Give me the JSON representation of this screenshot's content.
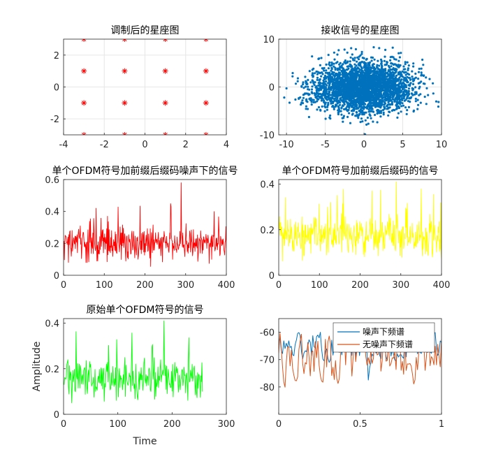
{
  "chart_data": [
    {
      "id": "p1",
      "type": "scatter",
      "title": "调制后的星座图",
      "xlim": [
        -4,
        4
      ],
      "ylim": [
        -3,
        3
      ],
      "xticks": [
        -4,
        -2,
        0,
        2,
        4
      ],
      "yticks": [
        -2,
        0,
        2
      ],
      "grid": true,
      "marker": "asterisk",
      "color": "#ff0000",
      "points": [
        [
          -3,
          -3
        ],
        [
          -1,
          -3
        ],
        [
          1,
          -3
        ],
        [
          3,
          -3
        ],
        [
          -3,
          -1
        ],
        [
          -1,
          -1
        ],
        [
          1,
          -1
        ],
        [
          3,
          -1
        ],
        [
          -3,
          1
        ],
        [
          -1,
          1
        ],
        [
          1,
          1
        ],
        [
          3,
          1
        ],
        [
          -3,
          3
        ],
        [
          -1,
          3
        ],
        [
          1,
          3
        ],
        [
          3,
          3
        ]
      ]
    },
    {
      "id": "p2",
      "type": "scatter",
      "title": "接收信号的星座图",
      "xlim": [
        -11,
        10
      ],
      "ylim": [
        -10,
        10
      ],
      "xticks": [
        -10,
        -5,
        0,
        5,
        10
      ],
      "yticks": [
        -10,
        0,
        10
      ],
      "grid": true,
      "marker": "dot",
      "color": "#0072bd",
      "description": "dense gaussian cloud of received noisy constellation points",
      "cloud": {
        "center": [
          0,
          0
        ],
        "std_x": 3.2,
        "std_y": 2.6,
        "count": 3000
      }
    },
    {
      "id": "p3",
      "type": "line",
      "title": "单个OFDM符号加前缀后缀码噪声下的信号",
      "xlim": [
        0,
        400
      ],
      "ylim": [
        0,
        0.6
      ],
      "xticks": [
        0,
        100,
        200,
        300,
        400
      ],
      "yticks": [
        0,
        0.2,
        0.4,
        0.6
      ],
      "grid": false,
      "color": "#ff0000",
      "signal": {
        "n": 400,
        "mean": 0.2,
        "spread": 0.1,
        "max": 0.58
      }
    },
    {
      "id": "p4",
      "type": "line",
      "title": "单个OFDM符号加前缀后缀码的信号",
      "xlim": [
        0,
        400
      ],
      "ylim": [
        0,
        0.42
      ],
      "xticks": [
        0,
        100,
        200,
        300,
        400
      ],
      "yticks": [
        0,
        0.2,
        0.4
      ],
      "grid": false,
      "color": "#ffff00",
      "signal": {
        "n": 400,
        "mean": 0.17,
        "spread": 0.08,
        "max": 0.41
      }
    },
    {
      "id": "p5",
      "type": "line",
      "title": "原始单个OFDM符号的信号",
      "xlabel": "Time",
      "ylabel": "Amplitude",
      "xlim": [
        0,
        300
      ],
      "ylim": [
        0,
        0.42
      ],
      "xticks": [
        0,
        100,
        200,
        300
      ],
      "yticks": [
        0,
        0.2,
        0.4
      ],
      "grid": false,
      "color": "#00ff00",
      "signal": {
        "n": 256,
        "mean": 0.16,
        "spread": 0.08,
        "max": 0.41
      }
    },
    {
      "id": "p6",
      "type": "line",
      "title": "",
      "xlim": [
        0,
        1
      ],
      "ylim": [
        -90,
        -55
      ],
      "xticks": [
        0,
        0.5,
        1
      ],
      "yticks": [
        -80,
        -70,
        -60
      ],
      "grid": false,
      "legend_position": "top-right",
      "series": [
        {
          "name": "噪声下频谱",
          "color": "#0072bd",
          "mean": -65,
          "spread": 4
        },
        {
          "name": "无噪声下频谱",
          "color": "#d95319",
          "mean": -69,
          "spread": 7
        }
      ],
      "n": 130
    }
  ]
}
